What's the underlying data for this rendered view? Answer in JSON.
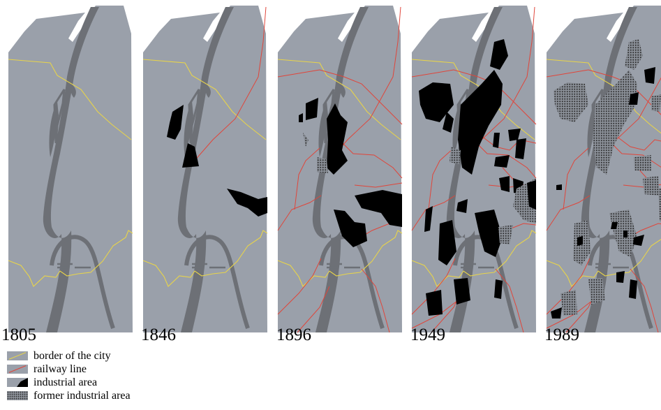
{
  "figure": {
    "panels": [
      {
        "year": "1805",
        "railways": false,
        "industry_stage": 0
      },
      {
        "year": "1846",
        "railways": true,
        "industry_stage": 1
      },
      {
        "year": "1896",
        "railways": true,
        "industry_stage": 2
      },
      {
        "year": "1949",
        "railways": true,
        "industry_stage": 3
      },
      {
        "year": "1989",
        "railways": true,
        "industry_stage": 4
      }
    ]
  },
  "legend": {
    "items": [
      {
        "label": "border of the city",
        "symbol": "yellow-line"
      },
      {
        "label": "railway line",
        "symbol": "red-line"
      },
      {
        "label": "industrial area",
        "symbol": "black-fill"
      },
      {
        "label": "former industrial area",
        "symbol": "dotted-fill"
      }
    ]
  },
  "colors": {
    "city_fill": "#9aa0aa",
    "river": "#6d7076",
    "border_line": "#e8d44a",
    "railway_line": "#e0453a",
    "industrial": "#000000",
    "former_industrial_dots": "#2a2a2a",
    "background": "#ffffff"
  }
}
